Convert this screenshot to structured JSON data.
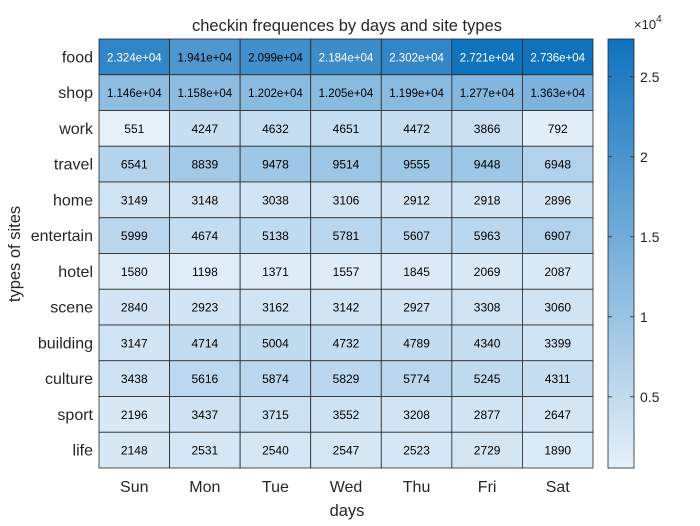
{
  "chart_data": {
    "type": "heatmap",
    "title": "checkin frequences by days and site types",
    "xlabel": "days",
    "ylabel": "types of sites",
    "x_categories": [
      "Sun",
      "Mon",
      "Tue",
      "Wed",
      "Thu",
      "Fri",
      "Sat"
    ],
    "y_categories": [
      "food",
      "shop",
      "work",
      "travel",
      "home",
      "entertain",
      "hotel",
      "scene",
      "building",
      "culture",
      "sport",
      "life"
    ],
    "values": [
      [
        23240,
        19410,
        20990,
        21840,
        23020,
        27210,
        27360
      ],
      [
        11460,
        11580,
        12020,
        12050,
        11990,
        12770,
        13630
      ],
      [
        551,
        4247,
        4632,
        4651,
        4472,
        3866,
        792
      ],
      [
        6541,
        8839,
        9478,
        9514,
        9555,
        9448,
        6948
      ],
      [
        3149,
        3148,
        3038,
        3106,
        2912,
        2918,
        2896
      ],
      [
        5999,
        4674,
        5138,
        5781,
        5607,
        5963,
        6907
      ],
      [
        1580,
        1198,
        1371,
        1557,
        1845,
        2069,
        2087
      ],
      [
        2840,
        2923,
        3162,
        3142,
        2927,
        3308,
        3060
      ],
      [
        3147,
        4714,
        5004,
        4732,
        4789,
        4340,
        3399
      ],
      [
        3438,
        5616,
        5874,
        5829,
        5774,
        5245,
        4311
      ],
      [
        2196,
        3437,
        3715,
        3552,
        3208,
        2877,
        2647
      ],
      [
        2148,
        2531,
        2540,
        2547,
        2523,
        2729,
        1890
      ]
    ],
    "cell_labels": [
      [
        "2.324e+04",
        "1.941e+04",
        "2.099e+04",
        "2.184e+04",
        "2.302e+04",
        "2.721e+04",
        "2.736e+04"
      ],
      [
        "1.146e+04",
        "1.158e+04",
        "1.202e+04",
        "1.205e+04",
        "1.199e+04",
        "1.277e+04",
        "1.363e+04"
      ],
      [
        "551",
        "4247",
        "4632",
        "4651",
        "4472",
        "3866",
        "792"
      ],
      [
        "6541",
        "8839",
        "9478",
        "9514",
        "9555",
        "9448",
        "6948"
      ],
      [
        "3149",
        "3148",
        "3038",
        "3106",
        "2912",
        "2918",
        "2896"
      ],
      [
        "5999",
        "4674",
        "5138",
        "5781",
        "5607",
        "5963",
        "6907"
      ],
      [
        "1580",
        "1198",
        "1371",
        "1557",
        "1845",
        "2069",
        "2087"
      ],
      [
        "2840",
        "2923",
        "3162",
        "3142",
        "2927",
        "3308",
        "3060"
      ],
      [
        "3147",
        "4714",
        "5004",
        "4732",
        "4789",
        "4340",
        "3399"
      ],
      [
        "3438",
        "5616",
        "5874",
        "5829",
        "5774",
        "5245",
        "4311"
      ],
      [
        "2196",
        "3437",
        "3715",
        "3552",
        "3208",
        "2877",
        "2647"
      ],
      [
        "2148",
        "2531",
        "2540",
        "2547",
        "2523",
        "2729",
        "1890"
      ]
    ],
    "colorbar": {
      "range": [
        551,
        27360
      ],
      "ticks": [
        0.5,
        1,
        1.5,
        2,
        2.5
      ],
      "tick_labels": [
        "0.5",
        "1",
        "1.5",
        "2",
        "2.5"
      ],
      "multiplier_label": "×10",
      "multiplier_exponent": "4",
      "scale_factor": 10000,
      "color_low": "#e5f0f9",
      "color_high": "#0f72bd",
      "position": "right"
    },
    "legend": "none",
    "grid": false
  }
}
